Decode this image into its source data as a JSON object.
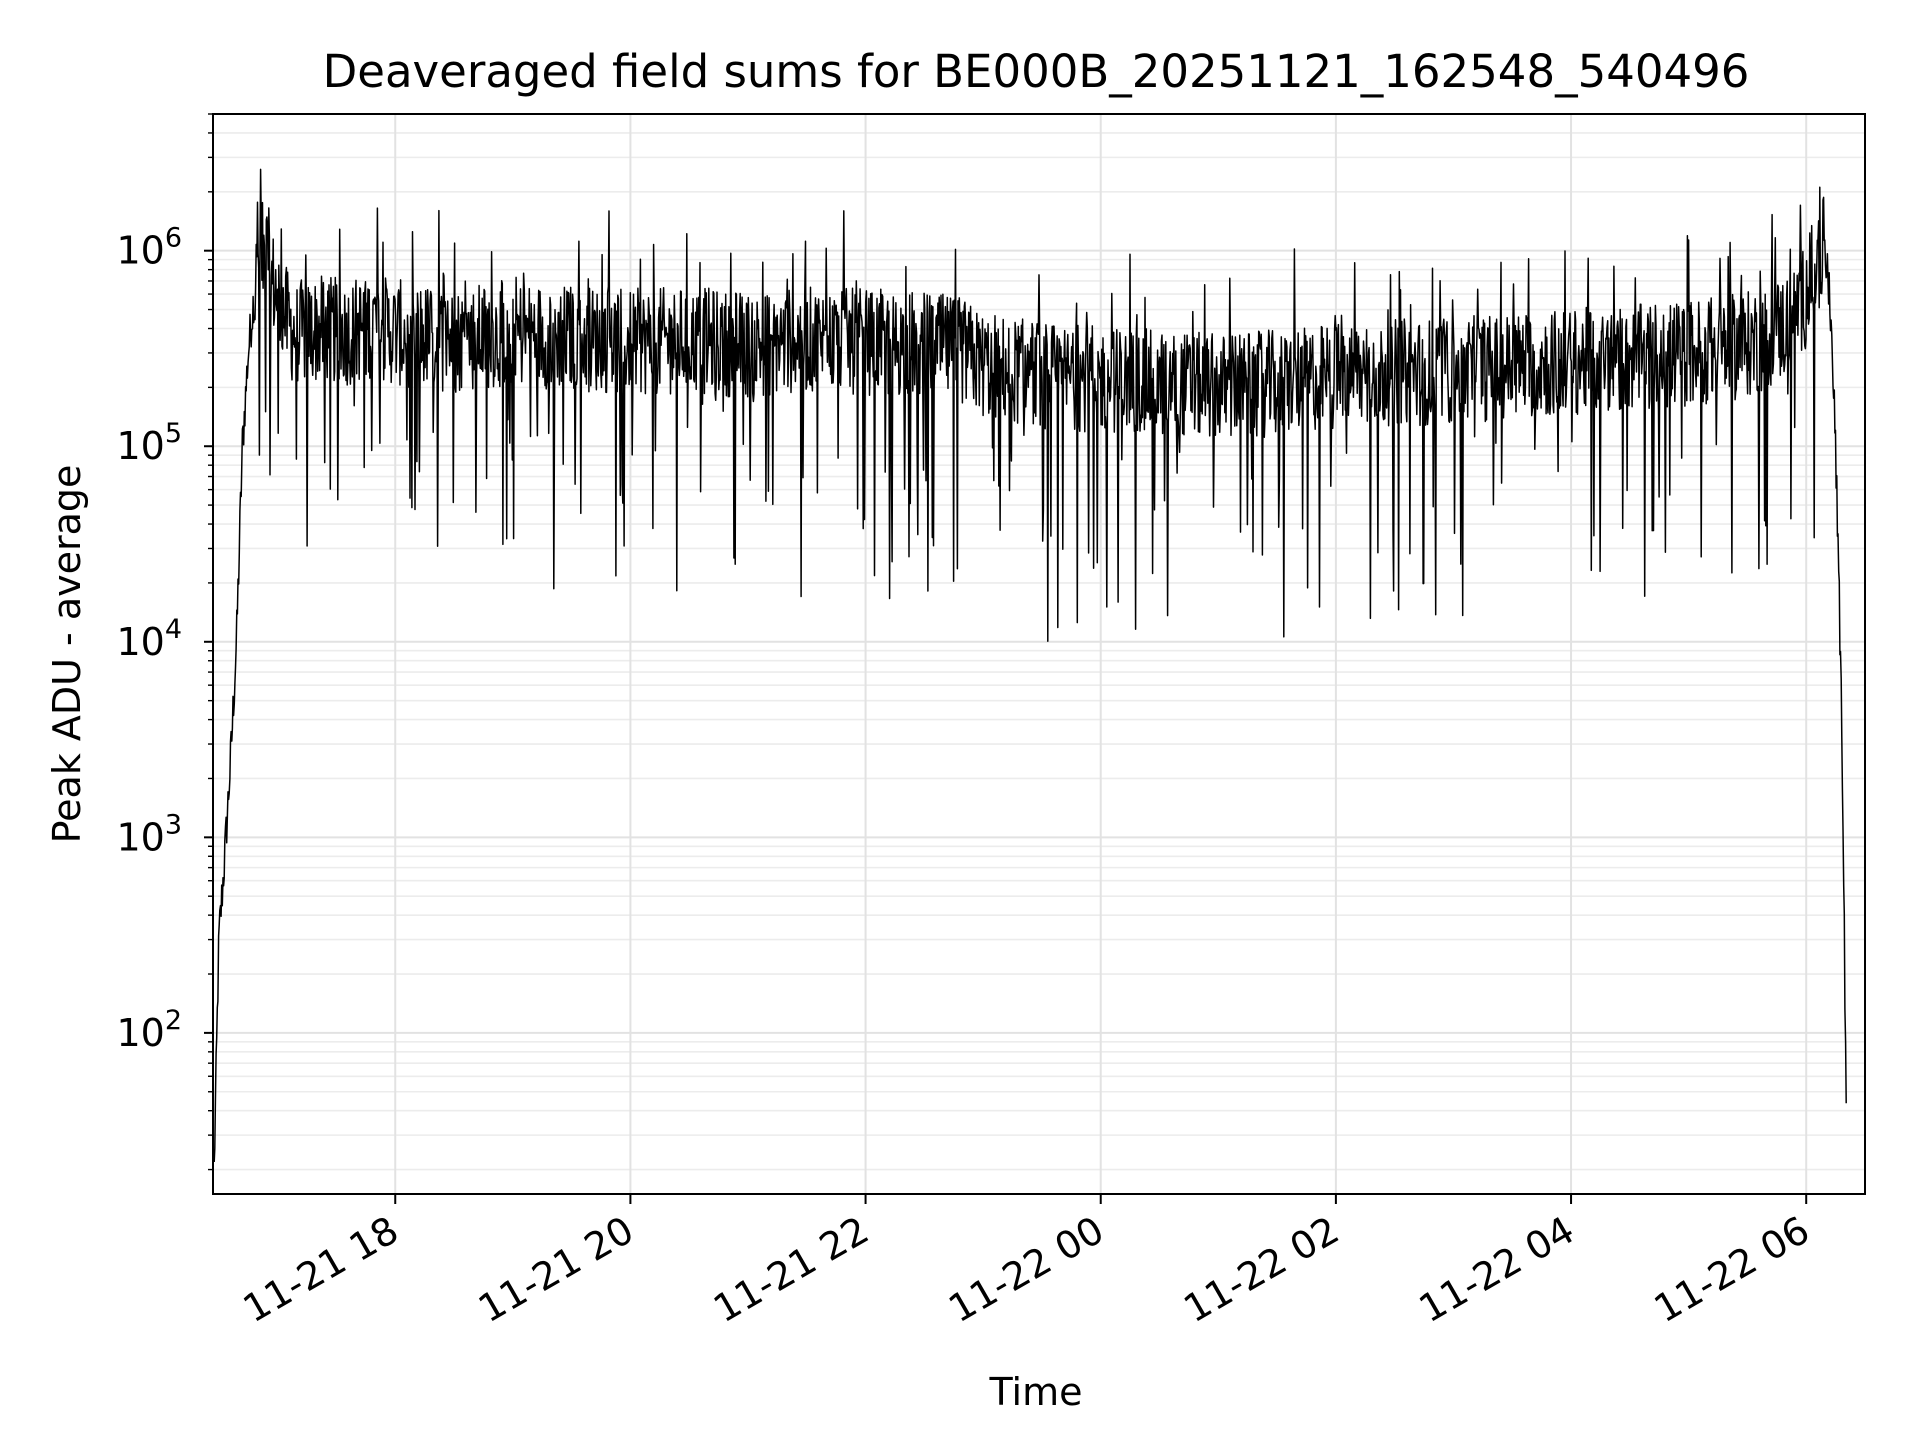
{
  "chart_data": {
    "type": "line",
    "title": "Deaveraged field sums for BE000B_20251121_162548_540496",
    "xlabel": "Time",
    "ylabel": "Peak ADU - average",
    "yscale": "log",
    "ylim": [
      15,
      5000000
    ],
    "grid": true,
    "x_unit": "hours since 11-21 16:00",
    "xlim": [
      16.45,
      30.5
    ],
    "x_ticks": [
      {
        "value": 18,
        "label": "11-21 18"
      },
      {
        "value": 20,
        "label": "11-21 20"
      },
      {
        "value": 22,
        "label": "11-21 22"
      },
      {
        "value": 24,
        "label": "11-22 00"
      },
      {
        "value": 26,
        "label": "11-22 02"
      },
      {
        "value": 28,
        "label": "11-22 04"
      },
      {
        "value": 30,
        "label": "11-22 06"
      }
    ],
    "y_ticks": [
      {
        "value": 100,
        "base": "10",
        "exp": "2"
      },
      {
        "value": 1000,
        "base": "10",
        "exp": "3"
      },
      {
        "value": 10000,
        "base": "10",
        "exp": "4"
      },
      {
        "value": 100000,
        "base": "10",
        "exp": "5"
      },
      {
        "value": 1000000,
        "base": "10",
        "exp": "6"
      }
    ],
    "series": [
      {
        "name": "Peak ADU - average",
        "color": "#000000",
        "x": [
          16.46,
          16.5,
          16.55,
          16.6,
          16.65,
          16.7,
          16.75,
          16.8,
          16.85,
          16.9,
          16.95,
          17.0,
          17.1,
          17.2,
          17.4,
          17.6,
          17.8,
          18.0,
          18.5,
          19.0,
          19.5,
          20.0,
          20.5,
          21.0,
          21.5,
          22.0,
          22.5,
          22.8,
          23.0,
          23.5,
          24.0,
          24.5,
          25.0,
          25.5,
          26.0,
          26.5,
          27.0,
          27.5,
          28.0,
          28.5,
          29.0,
          29.5,
          29.8,
          30.0,
          30.1,
          30.15,
          30.2,
          30.25,
          30.3,
          30.34
        ],
        "values": [
          20,
          300,
          800,
          2500,
          10000,
          100000,
          300000,
          600000,
          900000,
          1000000,
          700000,
          600000,
          400000,
          380000,
          400000,
          380000,
          420000,
          380000,
          350000,
          380000,
          360000,
          340000,
          350000,
          330000,
          350000,
          340000,
          330000,
          310000,
          260000,
          230000,
          220000,
          210000,
          200000,
          210000,
          230000,
          240000,
          240000,
          260000,
          270000,
          280000,
          300000,
          330000,
          400000,
          600000,
          900000,
          1000000,
          600000,
          100000,
          5000,
          50
        ]
      }
    ]
  }
}
